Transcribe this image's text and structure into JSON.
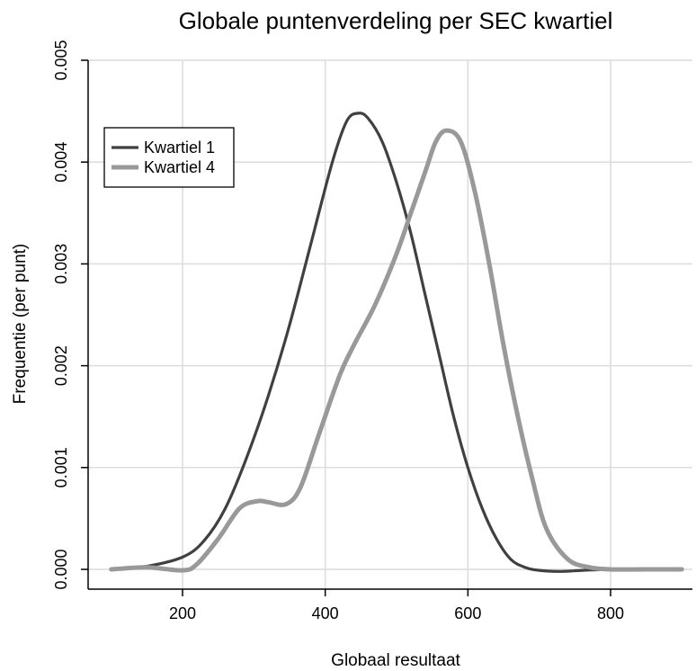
{
  "chart_data": {
    "type": "line",
    "title": "Globale puntenverdeling per SEC kwartiel",
    "xlabel": "Globaal resultaat",
    "ylabel": "Frequentie (per punt)",
    "xlim": [
      80,
      920
    ],
    "ylim": [
      0,
      0.005
    ],
    "xticks": [
      200,
      400,
      600,
      800
    ],
    "xtick_labels": [
      "200",
      "400",
      "600",
      "800"
    ],
    "yticks": [
      0,
      0.001,
      0.002,
      0.003,
      0.004,
      0.005
    ],
    "ytick_labels": [
      "0.000",
      "0.001",
      "0.002",
      "0.003",
      "0.004",
      "0.005"
    ],
    "grid": true,
    "legend_position": "top-left",
    "series": [
      {
        "name": "Kwartiel 1",
        "color": "#404040",
        "points": [
          [
            100,
            0
          ],
          [
            150,
            3e-05
          ],
          [
            200,
            0.00012
          ],
          [
            230,
            0.00028
          ],
          [
            260,
            0.0006
          ],
          [
            290,
            0.0011
          ],
          [
            320,
            0.0017
          ],
          [
            350,
            0.0024
          ],
          [
            380,
            0.0032
          ],
          [
            410,
            0.004
          ],
          [
            430,
            0.0044
          ],
          [
            446,
            0.00448
          ],
          [
            460,
            0.00443
          ],
          [
            480,
            0.0042
          ],
          [
            500,
            0.0038
          ],
          [
            520,
            0.0033
          ],
          [
            540,
            0.0027
          ],
          [
            560,
            0.0021
          ],
          [
            580,
            0.0015
          ],
          [
            600,
            0.001
          ],
          [
            620,
            0.0006
          ],
          [
            640,
            0.0003
          ],
          [
            660,
            0.0001
          ],
          [
            680,
            2e-05
          ],
          [
            700,
            -1e-05
          ],
          [
            730,
            -2e-05
          ],
          [
            760,
            -1e-05
          ],
          [
            800,
            0
          ],
          [
            850,
            0
          ],
          [
            900,
            0
          ]
        ]
      },
      {
        "name": "Kwartiel 4",
        "color": "#999999",
        "points": [
          [
            100,
            0
          ],
          [
            150,
            2e-05
          ],
          [
            200,
            -1e-05
          ],
          [
            220,
            5e-05
          ],
          [
            250,
            0.0003
          ],
          [
            280,
            0.0006
          ],
          [
            305,
            0.00067
          ],
          [
            320,
            0.00066
          ],
          [
            345,
            0.00064
          ],
          [
            365,
            0.0008
          ],
          [
            390,
            0.0013
          ],
          [
            420,
            0.0019
          ],
          [
            440,
            0.0022
          ],
          [
            470,
            0.0026
          ],
          [
            500,
            0.0031
          ],
          [
            520,
            0.0035
          ],
          [
            540,
            0.0039
          ],
          [
            555,
            0.0042
          ],
          [
            570,
            0.00431
          ],
          [
            590,
            0.0042
          ],
          [
            610,
            0.0037
          ],
          [
            630,
            0.003
          ],
          [
            650,
            0.0022
          ],
          [
            670,
            0.0015
          ],
          [
            690,
            0.0009
          ],
          [
            710,
            0.0004
          ],
          [
            740,
            0.0001
          ],
          [
            770,
            2e-05
          ],
          [
            800,
            0
          ],
          [
            850,
            0
          ],
          [
            900,
            0
          ]
        ]
      }
    ]
  }
}
